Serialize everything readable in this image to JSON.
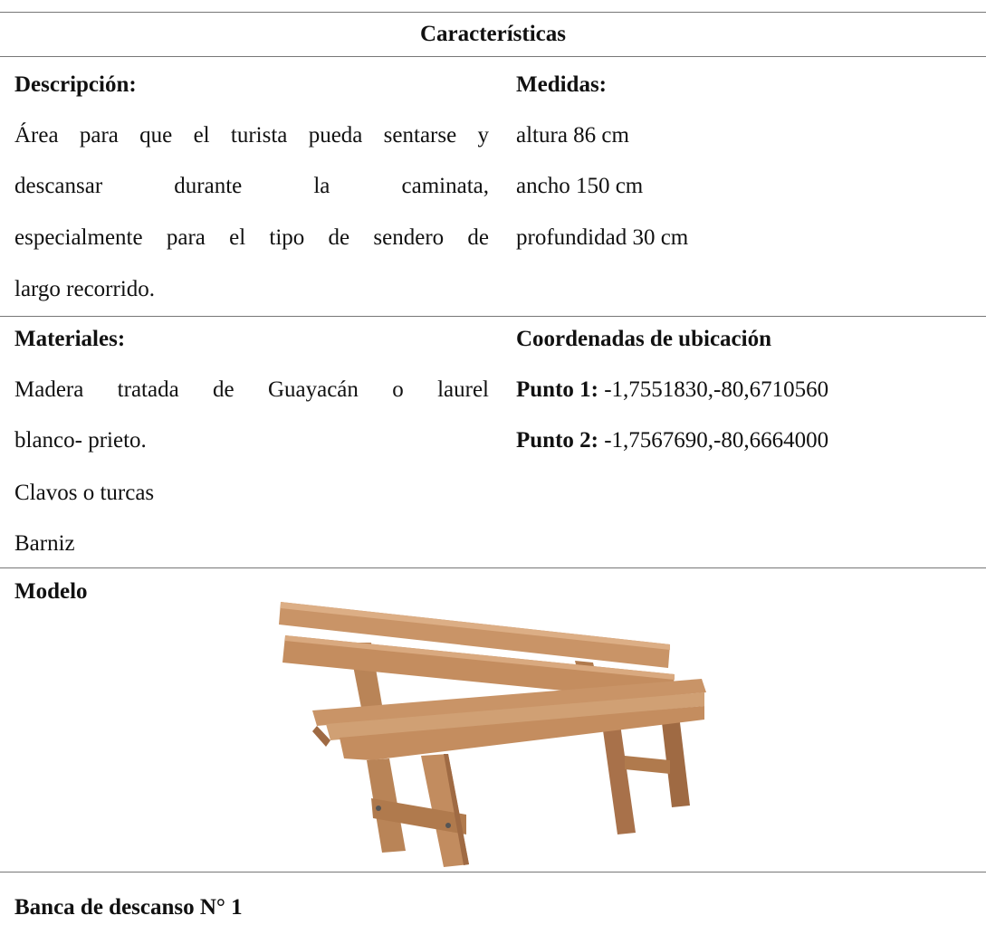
{
  "table": {
    "title": "Características",
    "description": {
      "label": "Descripción:",
      "lines": [
        "Área para que el turista pueda sentarse y",
        "descansar durante la caminata,",
        "especialmente para el tipo de sendero de",
        "largo recorrido."
      ]
    },
    "measures": {
      "label": "Medidas:",
      "lines": [
        "altura 86 cm",
        "ancho 150 cm",
        "profundidad 30 cm"
      ]
    },
    "materials": {
      "label": "Materiales:",
      "lines": [
        "Madera tratada de Guayacán o laurel",
        "blanco- prieto.",
        "Clavos o turcas",
        "Barniz"
      ]
    },
    "coordinates": {
      "label": "Coordenadas de ubicación",
      "points": [
        {
          "label": "Punto 1:",
          "value": "-1,7551830,-80,6710560"
        },
        {
          "label": "Punto 2:",
          "value": "-1,7567690,-80,6664000"
        }
      ]
    },
    "model": {
      "label": "Modelo"
    },
    "caption": "Banca de descanso N° 1"
  }
}
